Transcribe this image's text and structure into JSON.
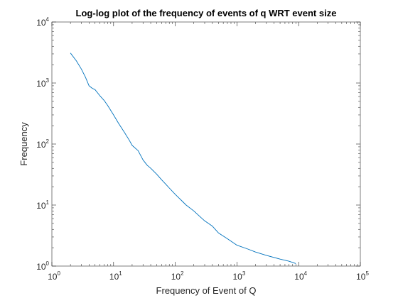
{
  "chart_data": {
    "type": "line",
    "title": "Log-log plot of the frequency of events of q WRT event size",
    "xlabel": "Frequency of Event of Q",
    "ylabel": "Frequency",
    "xscale": "log",
    "yscale": "log",
    "xlim": [
      1,
      100000
    ],
    "ylim": [
      1,
      10000
    ],
    "x_ticks": [
      {
        "base": "10",
        "exp": "0",
        "value": 1
      },
      {
        "base": "10",
        "exp": "1",
        "value": 10
      },
      {
        "base": "10",
        "exp": "2",
        "value": 100
      },
      {
        "base": "10",
        "exp": "3",
        "value": 1000
      },
      {
        "base": "10",
        "exp": "4",
        "value": 10000
      },
      {
        "base": "10",
        "exp": "5",
        "value": 100000
      }
    ],
    "y_ticks": [
      {
        "base": "10",
        "exp": "0",
        "value": 1
      },
      {
        "base": "10",
        "exp": "1",
        "value": 10
      },
      {
        "base": "10",
        "exp": "2",
        "value": 100
      },
      {
        "base": "10",
        "exp": "3",
        "value": 1000
      },
      {
        "base": "10",
        "exp": "4",
        "value": 10000
      }
    ],
    "grid": false,
    "box": true,
    "line_color": "#0072bd",
    "series": [
      {
        "x": [
          2,
          2.5,
          3,
          3.5,
          4,
          4.5,
          5,
          6,
          7,
          8,
          10,
          12,
          15,
          18,
          20,
          25,
          30,
          35,
          40,
          50,
          60,
          70,
          80,
          100,
          120,
          150,
          200,
          250,
          300,
          400,
          500,
          700,
          1000,
          1500,
          2000,
          3000,
          5000,
          7000,
          9000
        ],
        "y": [
          3100,
          2300,
          1700,
          1250,
          900,
          820,
          780,
          620,
          520,
          430,
          300,
          220,
          155,
          115,
          95,
          78,
          55,
          45,
          40,
          32,
          26,
          22,
          19,
          15,
          12.5,
          10,
          8,
          6.5,
          5.5,
          4.5,
          3.5,
          2.8,
          2.2,
          1.9,
          1.7,
          1.5,
          1.3,
          1.2,
          1.1
        ]
      }
    ]
  }
}
